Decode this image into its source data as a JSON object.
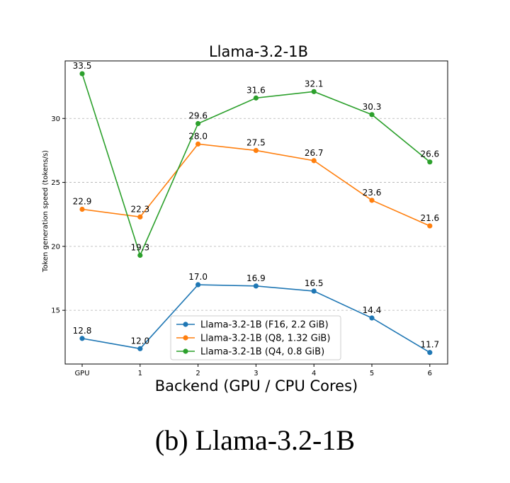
{
  "caption": "(b) Llama-3.2-1B",
  "chart_data": {
    "type": "line",
    "title": "Llama-3.2-1B",
    "xlabel": "Backend (GPU / CPU Cores)",
    "ylabel": "Token generation speed (tokens/s)",
    "categories": [
      "GPU",
      "1",
      "2",
      "3",
      "4",
      "5",
      "6"
    ],
    "yticks": [
      15,
      20,
      25,
      30
    ],
    "ylim": [
      10.8,
      34.5
    ],
    "grid": "horizontal dashed",
    "legend_position": "lower-center",
    "series": [
      {
        "name": "Llama-3.2-1B (F16, 2.2 GiB)",
        "color": "#1f77b4",
        "values": [
          12.8,
          12.0,
          17.0,
          16.9,
          16.5,
          14.4,
          11.7
        ]
      },
      {
        "name": "Llama-3.2-1B (Q8, 1.32 GiB)",
        "color": "#ff7f0e",
        "values": [
          22.9,
          22.3,
          28.0,
          27.5,
          26.7,
          23.6,
          21.6
        ]
      },
      {
        "name": "Llama-3.2-1B (Q4, 0.8 GiB)",
        "color": "#2ca02c",
        "values": [
          33.5,
          19.3,
          29.6,
          31.6,
          32.1,
          30.3,
          26.6
        ]
      }
    ]
  }
}
